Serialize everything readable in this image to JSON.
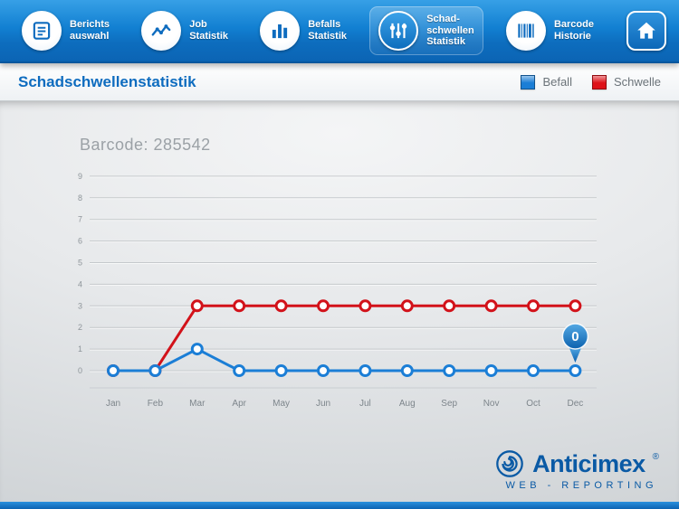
{
  "header": {
    "nav": [
      {
        "label": "Berichts\nauswahl",
        "icon": "report-icon",
        "active": false
      },
      {
        "label": "Job\nStatistik",
        "icon": "line-chart-icon",
        "active": false
      },
      {
        "label": "Befalls\nStatistik",
        "icon": "bar-chart-icon",
        "active": false
      },
      {
        "label": "Schad-\nschwellen\nStatistik",
        "icon": "sliders-icon",
        "active": true
      },
      {
        "label": "Barcode\nHistorie",
        "icon": "barcode-icon",
        "active": false
      }
    ],
    "home_icon": "home-icon"
  },
  "titlebar": {
    "title": "Schadschwellenstatistik",
    "legend": [
      {
        "label": "Befall",
        "color": "#1b7ed6"
      },
      {
        "label": "Schwelle",
        "color": "#de1219"
      }
    ]
  },
  "chart_data": {
    "type": "line",
    "title": "Barcode: 285542",
    "categories": [
      "Jan",
      "Feb",
      "Mar",
      "Apr",
      "May",
      "Jun",
      "Jul",
      "Aug",
      "Sep",
      "Nov",
      "Oct",
      "Dec"
    ],
    "series": [
      {
        "name": "Befall",
        "color": "#1b7ed6",
        "marker_fill": "#ffffff",
        "values": [
          0,
          0,
          1,
          0,
          0,
          0,
          0,
          0,
          0,
          0,
          0,
          0
        ]
      },
      {
        "name": "Schwelle",
        "color": "#d2121a",
        "marker_fill": "#ffffff",
        "values": [
          0,
          0,
          3,
          3,
          3,
          3,
          3,
          3,
          3,
          3,
          3,
          3
        ]
      }
    ],
    "ylim": [
      0,
      9
    ],
    "y_ticks": [
      0,
      1,
      2,
      3,
      4,
      5,
      6,
      7,
      8,
      9
    ],
    "grid": true,
    "legend_position": "top-right",
    "annotation": {
      "series": "Befall",
      "category_index": 11,
      "label": "0"
    }
  },
  "footer": {
    "brand": "Anticimex",
    "registered": "®",
    "subtitle": "WEB - REPORTING"
  }
}
